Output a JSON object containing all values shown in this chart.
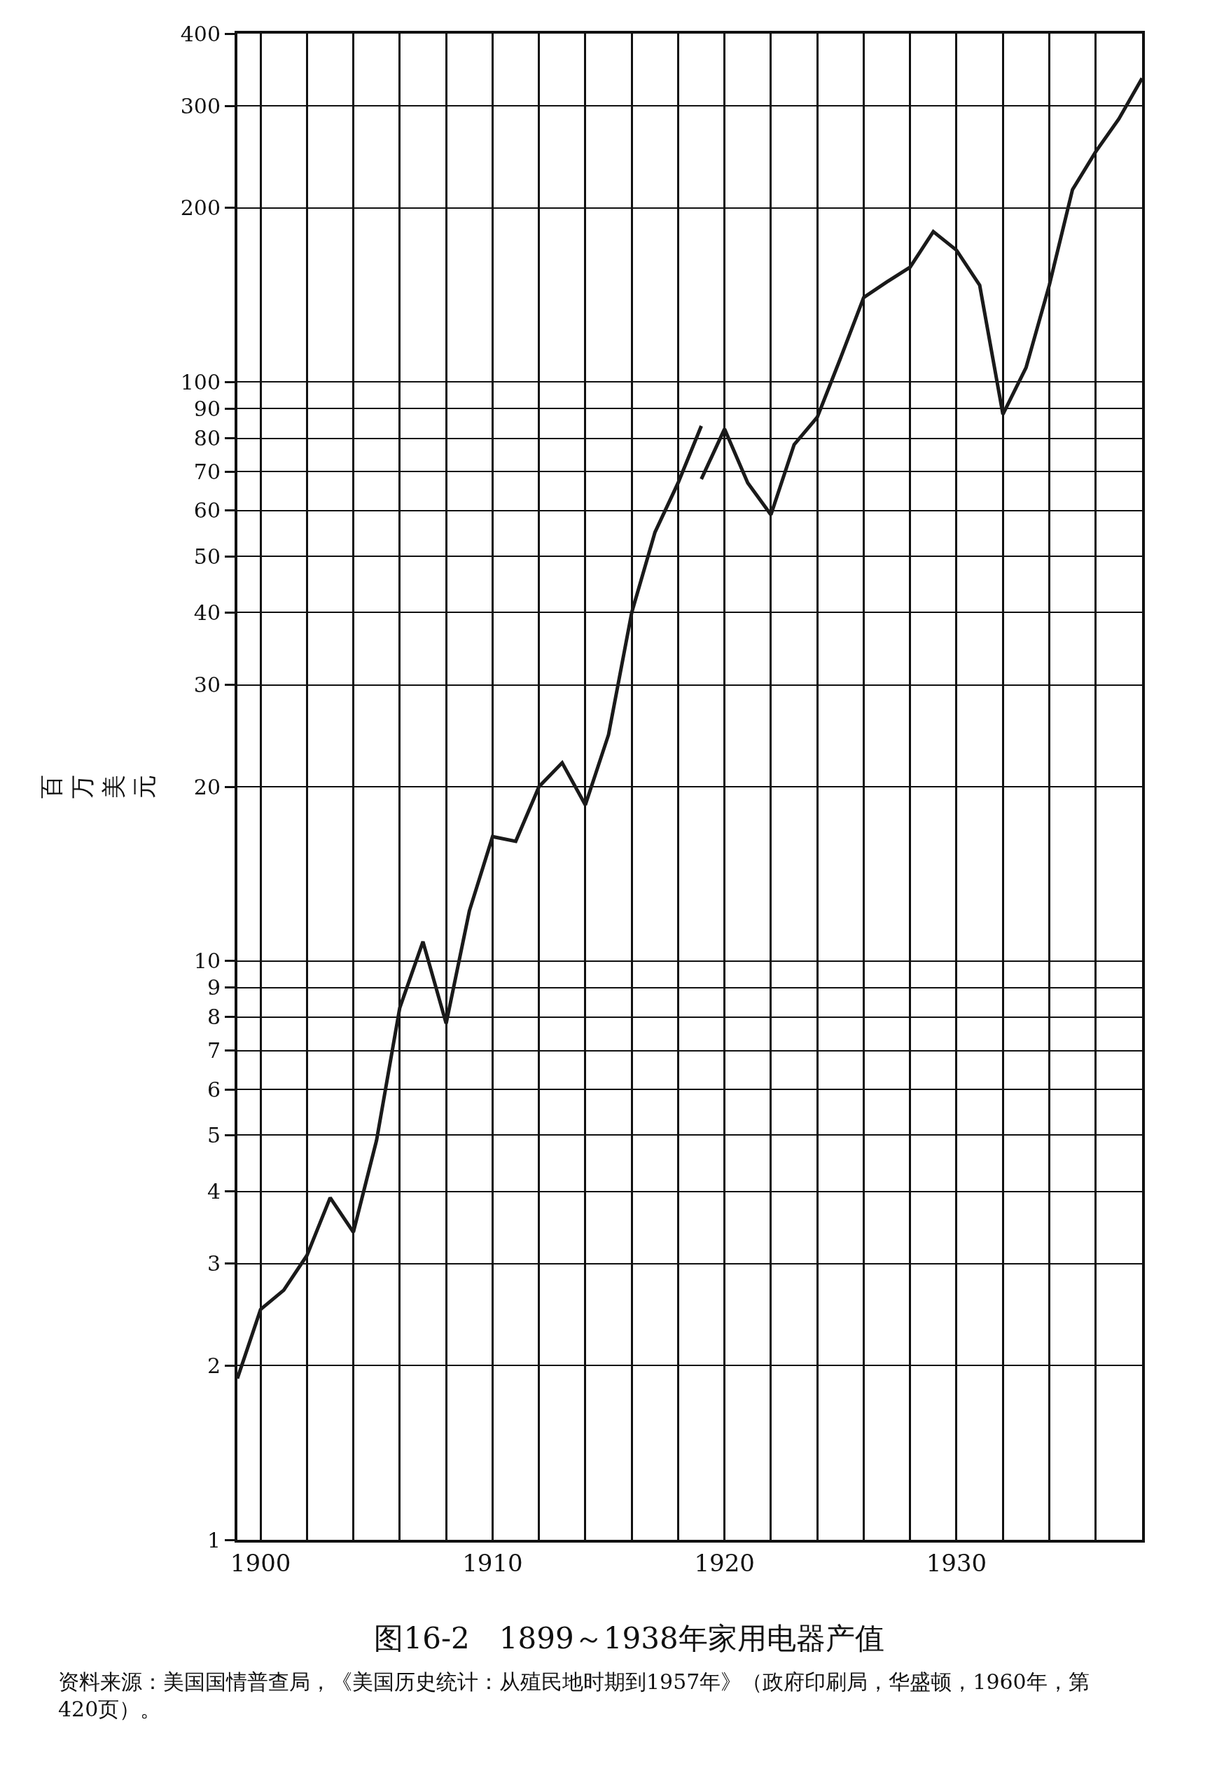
{
  "chart_data": {
    "type": "line",
    "title": "图16-2　1899～1938年家用电器产值",
    "ylabel": "百万美元",
    "annotations": [
      "资料来源：美国国情普查局，《美国历史统计：从殖民地时期到1957年》（政府印刷局，华盛顿，1960年，第420页）。"
    ],
    "series": [
      {
        "color": "#1a1a1a",
        "x": [
          1899,
          1900,
          1901,
          1902,
          1903,
          1904,
          1905,
          1906,
          1907,
          1908,
          1909,
          1910,
          1911,
          1912,
          1913,
          1914,
          1915,
          1916,
          1917,
          1918,
          1919
        ],
        "values": [
          1.9,
          2.5,
          2.7,
          3.1,
          3.9,
          3.4,
          4.9,
          8.3,
          10.8,
          7.8,
          12.2,
          16.4,
          16.1,
          20,
          22,
          18.6,
          24.6,
          40,
          55,
          67,
          84
        ]
      },
      {
        "color": "#1a1a1a",
        "x": [
          1919,
          1920,
          1921,
          1922,
          1923,
          1924,
          1925,
          1926,
          1927,
          1928,
          1929,
          1930,
          1931,
          1932,
          1933,
          1934,
          1935,
          1936,
          1937,
          1938
        ],
        "values": [
          68,
          83,
          67,
          59,
          78,
          87,
          110,
          140,
          149,
          158,
          182,
          169,
          147,
          88,
          106,
          147,
          215,
          250,
          285,
          335
        ]
      }
    ],
    "log": "y",
    "grid": true,
    "marker": "none",
    "line_style": "solid",
    "xlim": [
      1899,
      1938
    ],
    "xticks": [
      1900,
      {
        "value": 1902,
        "label": null
      },
      {
        "value": 1904,
        "label": null
      },
      {
        "value": 1906,
        "label": null
      },
      {
        "value": 1908,
        "label": null
      },
      1910,
      {
        "value": 1912,
        "label": null
      },
      {
        "value": 1914,
        "label": null
      },
      {
        "value": 1916,
        "label": null
      },
      {
        "value": 1918,
        "label": null
      },
      1920,
      {
        "value": 1922,
        "label": null
      },
      {
        "value": 1924,
        "label": null
      },
      {
        "value": 1926,
        "label": null
      },
      {
        "value": 1928,
        "label": null
      },
      1930,
      {
        "value": 1932,
        "label": null
      },
      {
        "value": 1934,
        "label": null
      },
      {
        "value": 1936,
        "label": null
      }
    ],
    "ylim": [
      1,
      400
    ],
    "yticks": [
      1,
      2,
      3,
      4,
      5,
      6,
      7,
      8,
      9,
      10,
      20,
      30,
      40,
      50,
      60,
      70,
      80,
      90,
      100,
      200,
      300,
      400
    ]
  }
}
